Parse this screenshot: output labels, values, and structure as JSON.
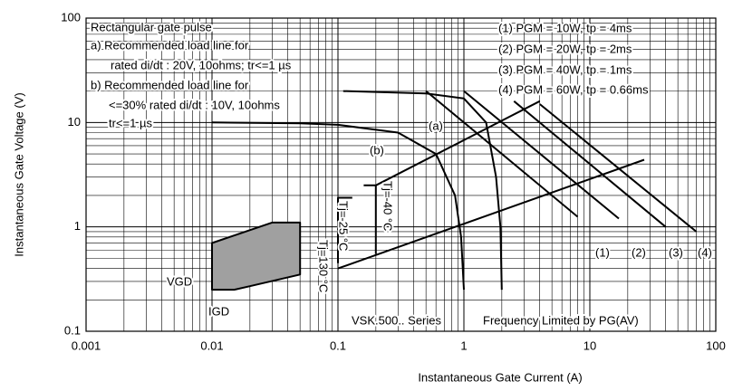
{
  "chart_data": {
    "type": "line",
    "xlabel": "Instantaneous Gate Current (A)",
    "ylabel": "Instantaneous Gate Voltage (V)",
    "log_x": true,
    "log_y": true,
    "grid": true,
    "xlim": [
      0.001,
      100
    ],
    "ylim": [
      0.1,
      100
    ],
    "xticks": [
      0.001,
      0.01,
      0.1,
      1,
      10,
      100
    ],
    "yticks": [
      0.1,
      1,
      10,
      100
    ],
    "annotations": [
      "Rectangular gate pulse",
      "a) Recommended load line for",
      "rated di/dt : 20V, 10ohms; tr<=1 µs",
      "b) Recommended load line for",
      "<=30% rated di/dt : 10V, 10ohms",
      "tr<=1 µs",
      "Tj=-40 °C",
      "Tj=-25 °C",
      "Tj=130 °C",
      "VGD",
      "IGD",
      "VSK.500.. Series",
      "Frequency Limited by PG(AV)"
    ],
    "series": [
      {
        "name": "(a)",
        "color": "#000000",
        "x": [
          0.11,
          0.5,
          1,
          1.5,
          1.8,
          1.95,
          2
        ],
        "values": [
          20,
          19,
          17,
          10,
          3,
          1,
          0.25
        ]
      },
      {
        "name": "(b)",
        "color": "#000000",
        "x": [
          0.01,
          0.05,
          0.1,
          0.3,
          0.6,
          0.85,
          0.95,
          1
        ],
        "values": [
          10,
          9.8,
          9.5,
          8,
          5,
          2,
          0.8,
          0.25
        ]
      },
      {
        "name": "(1) PGM = 10W, tp = 4ms",
        "label": "(1)",
        "color": "#000000",
        "x": [
          0.5,
          8
        ],
        "values": [
          20,
          1.25
        ]
      },
      {
        "name": "(2) PGM = 20W, tp = 2ms",
        "label": "(2)",
        "color": "#000000",
        "x": [
          1,
          17
        ],
        "values": [
          20,
          1.2
        ]
      },
      {
        "name": "(3) PGM = 40W, tp = 1ms",
        "label": "(3)",
        "color": "#000000",
        "x": [
          2.5,
          40
        ],
        "values": [
          16,
          1
        ]
      },
      {
        "name": "(4) PGM = 60W, tp = 0.66ms",
        "label": "(4)",
        "color": "#000000",
        "x": [
          4,
          70
        ],
        "values": [
          15,
          0.9
        ]
      },
      {
        "color": "#000000",
        "x": [
          0.2,
          4
        ],
        "values": [
          2.5,
          16
        ]
      },
      {
        "color": "#000000",
        "x": [
          0.1,
          27
        ],
        "values": [
          0.4,
          4.4
        ]
      },
      {
        "color": "#000000",
        "fill": "#a0a0a0",
        "x": [
          0.01,
          0.01,
          0.03,
          0.05,
          0.05,
          0.02,
          0.015,
          0.01
        ],
        "values": [
          0.25,
          0.7,
          1.1,
          1.1,
          0.35,
          0.27,
          0.25,
          0.25
        ]
      },
      {
        "color": "#000000",
        "x": [
          0.1,
          0.1,
          0.13
        ],
        "values": [
          0.45,
          1.9,
          1.9
        ]
      },
      {
        "color": "#000000",
        "x": [
          0.16,
          0.2,
          0.2
        ],
        "values": [
          2.5,
          2.5,
          0.55
        ]
      }
    ]
  }
}
